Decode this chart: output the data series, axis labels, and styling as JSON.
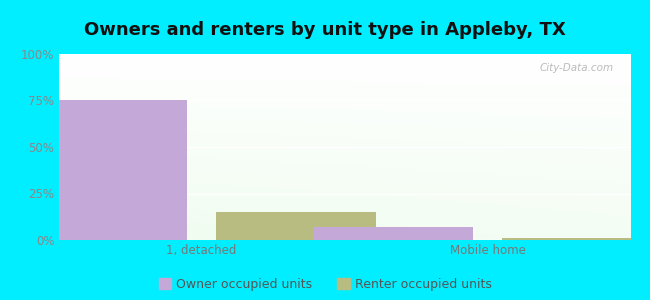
{
  "title": "Owners and renters by unit type in Appleby, TX",
  "categories": [
    "1, detached",
    "Mobile home"
  ],
  "owner_values": [
    75,
    7
  ],
  "renter_values": [
    15,
    1
  ],
  "owner_color": "#c4a8d8",
  "renter_color": "#b8bc80",
  "bg_outer": "#00eeff",
  "bg_plot_top": "#eaf5ea",
  "bg_plot_bottom": "#d8edd8",
  "bg_plot_top_right": "#f5fff5",
  "yticks": [
    0,
    25,
    50,
    75,
    100
  ],
  "ytick_labels": [
    "0%",
    "25%",
    "50%",
    "75%",
    "100%"
  ],
  "bar_width": 0.28,
  "bar_gap": 0.05,
  "watermark": "City-Data.com",
  "legend_owner": "Owner occupied units",
  "legend_renter": "Renter occupied units",
  "title_fontsize": 13,
  "tick_fontsize": 8.5,
  "legend_fontsize": 9,
  "group_centers": [
    0.25,
    0.75
  ],
  "xlim": [
    0,
    1
  ]
}
